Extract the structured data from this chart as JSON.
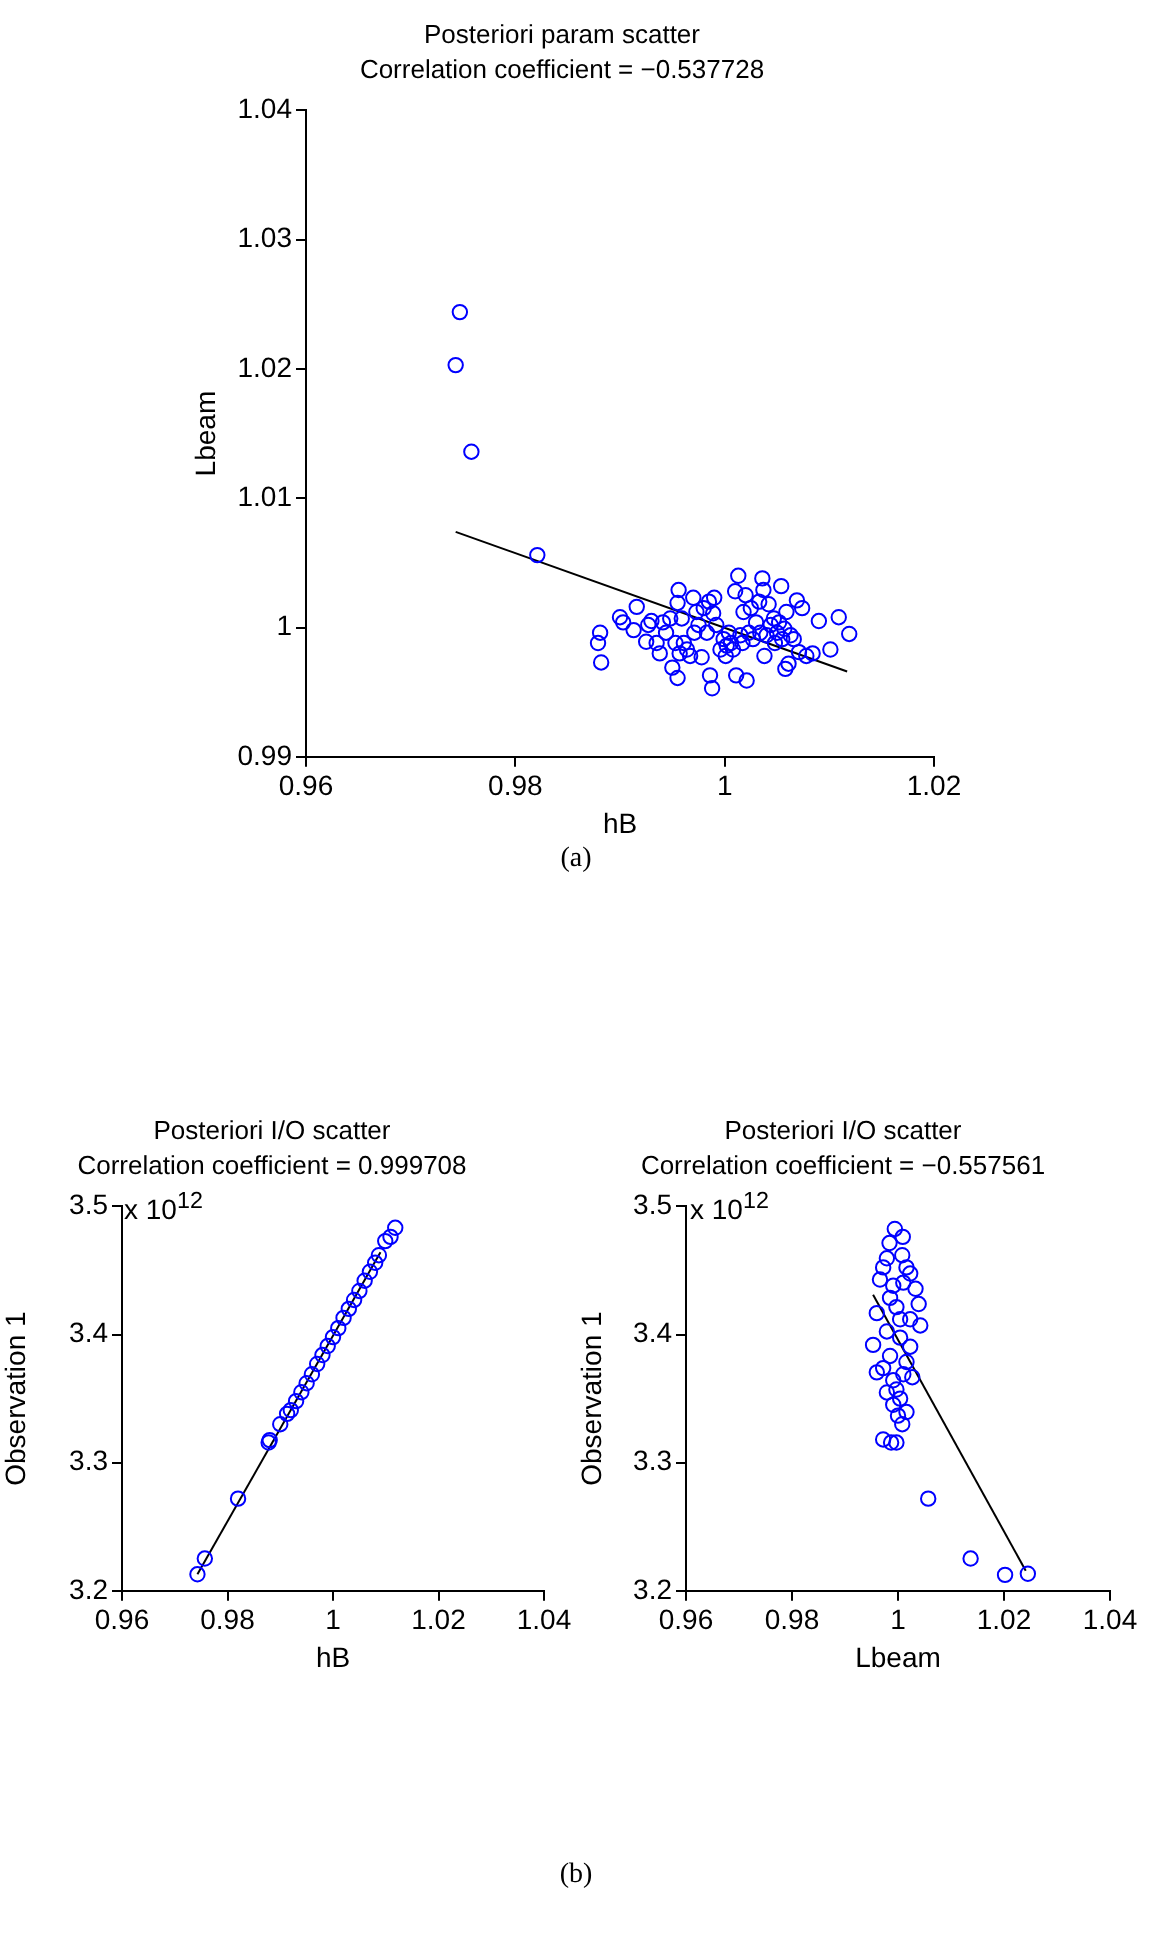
{
  "chart_data": [
    {
      "type": "scatter",
      "title": "Posteriori param scatter",
      "subtitle": "Correlation coefficient = −0.537728",
      "xlabel": "hB",
      "ylabel": "Lbeam",
      "annotations": [
        "(a)"
      ],
      "xlim": [
        0.96,
        1.02
      ],
      "xticks": [
        0.96,
        0.98,
        1,
        1.02
      ],
      "ylim": [
        0.99,
        1.04
      ],
      "yticks": [
        0.99,
        1,
        1.01,
        1.02,
        1.03,
        1.04
      ],
      "grid": false,
      "legend": false,
      "series": [
        {
          "marker": "circle",
          "color": "#0000ff",
          "x": [
            0.9747,
            0.9743,
            0.9758,
            0.9821,
            0.9881,
            0.9879,
            0.9882,
            0.99,
            0.9903,
            0.9913,
            0.9916,
            0.9925,
            0.9927,
            0.993,
            0.9935,
            0.9938,
            0.9941,
            0.9944,
            0.9948,
            0.995,
            0.9953,
            0.9955,
            0.9955,
            0.9956,
            0.9957,
            0.9959,
            0.9961,
            0.9964,
            0.9967,
            0.997,
            0.9971,
            0.9973,
            0.9975,
            0.9978,
            0.998,
            0.9983,
            0.9985,
            0.9986,
            0.9988,
            0.9989,
            0.999,
            0.9992,
            0.9996,
            0.9999,
            1.0001,
            1.0002,
            1.0004,
            1.0006,
            1.0008,
            1.001,
            1.0011,
            1.0013,
            1.0015,
            1.0017,
            1.0018,
            1.002,
            1.0021,
            1.0023,
            1.0025,
            1.0027,
            1.003,
            1.0033,
            1.0034,
            1.0036,
            1.0037,
            1.0038,
            1.004,
            1.0042,
            1.0044,
            1.0047,
            1.0048,
            1.005,
            1.0052,
            1.0054,
            1.0055,
            1.0057,
            1.0058,
            1.0059,
            1.0061,
            1.0063,
            1.0066,
            1.0069,
            1.0071,
            1.0074,
            1.0078,
            1.0084,
            1.009,
            1.0101,
            1.0109,
            1.0119
          ],
          "values": [
            1.0244,
            1.0203,
            1.0136,
            1.0056,
            0.9996,
            0.9988,
            0.9973,
            1.0008,
            1.0004,
            0.9998,
            1.0016,
            0.9989,
            1.0002,
            1.0005,
            0.9988,
            0.998,
            1.0004,
            0.9996,
            1.0007,
            0.9969,
            0.9988,
            0.9961,
            1.0019,
            1.0029,
            0.998,
            1.0007,
            0.9988,
            0.9983,
            0.9978,
            1.0023,
            0.9996,
            1.0012,
            1.0002,
            0.9977,
            1.0015,
            0.9996,
            1.002,
            0.9963,
            0.9953,
            1.0011,
            1.0023,
            1.0002,
            0.9983,
            0.9991,
            0.9978,
            0.9986,
            0.9996,
            0.9988,
            0.9983,
            1.0028,
            0.9963,
            1.004,
            0.9994,
            0.9988,
            1.0012,
            1.0025,
            0.9959,
            0.9996,
            1.0015,
            0.9991,
            1.0004,
            1.002,
            0.9996,
            1.0038,
            1.0029,
            0.9978,
            0.9994,
            1.0018,
            1.0002,
            1.0007,
            0.9988,
            0.9996,
            1.0004,
            1.0032,
            0.9991,
            0.9999,
            0.9968,
            1.0012,
            0.9972,
            0.9994,
            0.9991,
            1.0021,
            0.9981,
            1.0015,
            0.9978,
            0.998,
            1.0005,
            0.9983,
            1.0008,
            0.9995
          ]
        },
        {
          "type": "line",
          "marker": "none",
          "color": "#000000",
          "x": [
            0.9743,
            1.0117
          ],
          "values": [
            1.0074,
            0.9966
          ]
        }
      ]
    },
    {
      "type": "scatter",
      "title": "Posteriori I/O scatter",
      "subtitle": "Correlation coefficient = 0.999708",
      "xlabel": "hB",
      "ylabel": "Observation 1",
      "annotations": [
        "x 10$^{12}$",
        "(b)"
      ],
      "xlim": [
        0.96,
        1.04
      ],
      "xticks": [
        0.96,
        0.98,
        1,
        1.02,
        1.04
      ],
      "ylim": [
        3.2,
        3.5
      ],
      "yticks": [
        3.2,
        3.3,
        3.4,
        3.5
      ],
      "grid": false,
      "legend": false,
      "series": [
        {
          "marker": "circle",
          "color": "#0000ff",
          "x": [
            0.9743,
            0.9757,
            0.982,
            0.9878,
            0.988,
            0.99,
            0.9913,
            0.992,
            0.993,
            0.994,
            0.995,
            0.996,
            0.997,
            0.998,
            0.999,
            1.0,
            1.001,
            1.002,
            1.003,
            1.004,
            1.005,
            1.006,
            1.007,
            1.008,
            1.0087,
            1.0099,
            1.0109,
            1.0118
          ],
          "values": [
            3.2129,
            3.2252,
            3.2719,
            3.3157,
            3.3176,
            3.33,
            3.3381,
            3.341,
            3.348,
            3.355,
            3.362,
            3.369,
            3.377,
            3.384,
            3.391,
            3.398,
            3.405,
            3.413,
            3.42,
            3.427,
            3.434,
            3.442,
            3.449,
            3.456,
            3.4619,
            3.4729,
            3.4762,
            3.4833
          ]
        },
        {
          "type": "line",
          "marker": "none",
          "color": "#000000",
          "x": [
            0.9743,
            1.009
          ],
          "values": [
            3.2129,
            3.4643
          ]
        }
      ]
    },
    {
      "type": "scatter",
      "title": "Posteriori I/O scatter",
      "subtitle": "Correlation coefficient = −0.557561",
      "xlabel": "Lbeam",
      "ylabel": "Observation 1",
      "annotations": [
        "x 10$^{12}$"
      ],
      "xlim": [
        0.96,
        1.04
      ],
      "xticks": [
        0.96,
        0.98,
        1,
        1.02,
        1.04
      ],
      "ylim": [
        3.2,
        3.5
      ],
      "yticks": [
        3.2,
        3.3,
        3.4,
        3.5
      ],
      "grid": false,
      "legend": false,
      "series": [
        {
          "marker": "circle",
          "color": "#0000ff",
          "x": [
            1.0057,
            1.0137,
            1.0202,
            1.0245,
            0.9972,
            0.9987,
            0.9997,
            0.9994,
            1.0009,
            0.9984,
            1.0008,
            0.9979,
            1.0016,
            0.9972,
            1.0023,
            0.9966,
            1.0033,
            0.9991,
            1.001,
            1.0039,
            0.996,
            1.0042,
            1.0023,
            0.9979,
            0.9953,
            1.0004,
            1.0023,
            0.9985,
            0.996,
            1.0016,
            1.0027,
            0.9991,
            0.9979,
            1.0004,
            0.9991,
            1.0016,
            1.0,
            1.0008,
            0.9997,
            0.9985,
            1.0004,
            0.9972,
            0.9997,
            1.001
          ],
          "values": [
            3.2719,
            3.2252,
            3.2124,
            3.2133,
            3.3181,
            3.3157,
            3.3157,
            3.4824,
            3.4762,
            3.4714,
            3.4619,
            3.4595,
            3.4524,
            3.4524,
            3.4476,
            3.4429,
            3.4357,
            3.4381,
            3.4405,
            3.4238,
            3.4167,
            3.4071,
            3.4119,
            3.4024,
            3.3919,
            3.3976,
            3.3905,
            3.3833,
            3.3705,
            3.3786,
            3.3667,
            3.3643,
            3.3548,
            3.35,
            3.3452,
            3.3395,
            3.3367,
            3.33,
            3.4214,
            3.4286,
            3.4119,
            3.3738,
            3.3571,
            3.369
          ]
        },
        {
          "type": "line",
          "marker": "none",
          "color": "#000000",
          "x": [
            0.9953,
            1.0241
          ],
          "values": [
            3.431,
            3.2157
          ]
        }
      ]
    }
  ]
}
